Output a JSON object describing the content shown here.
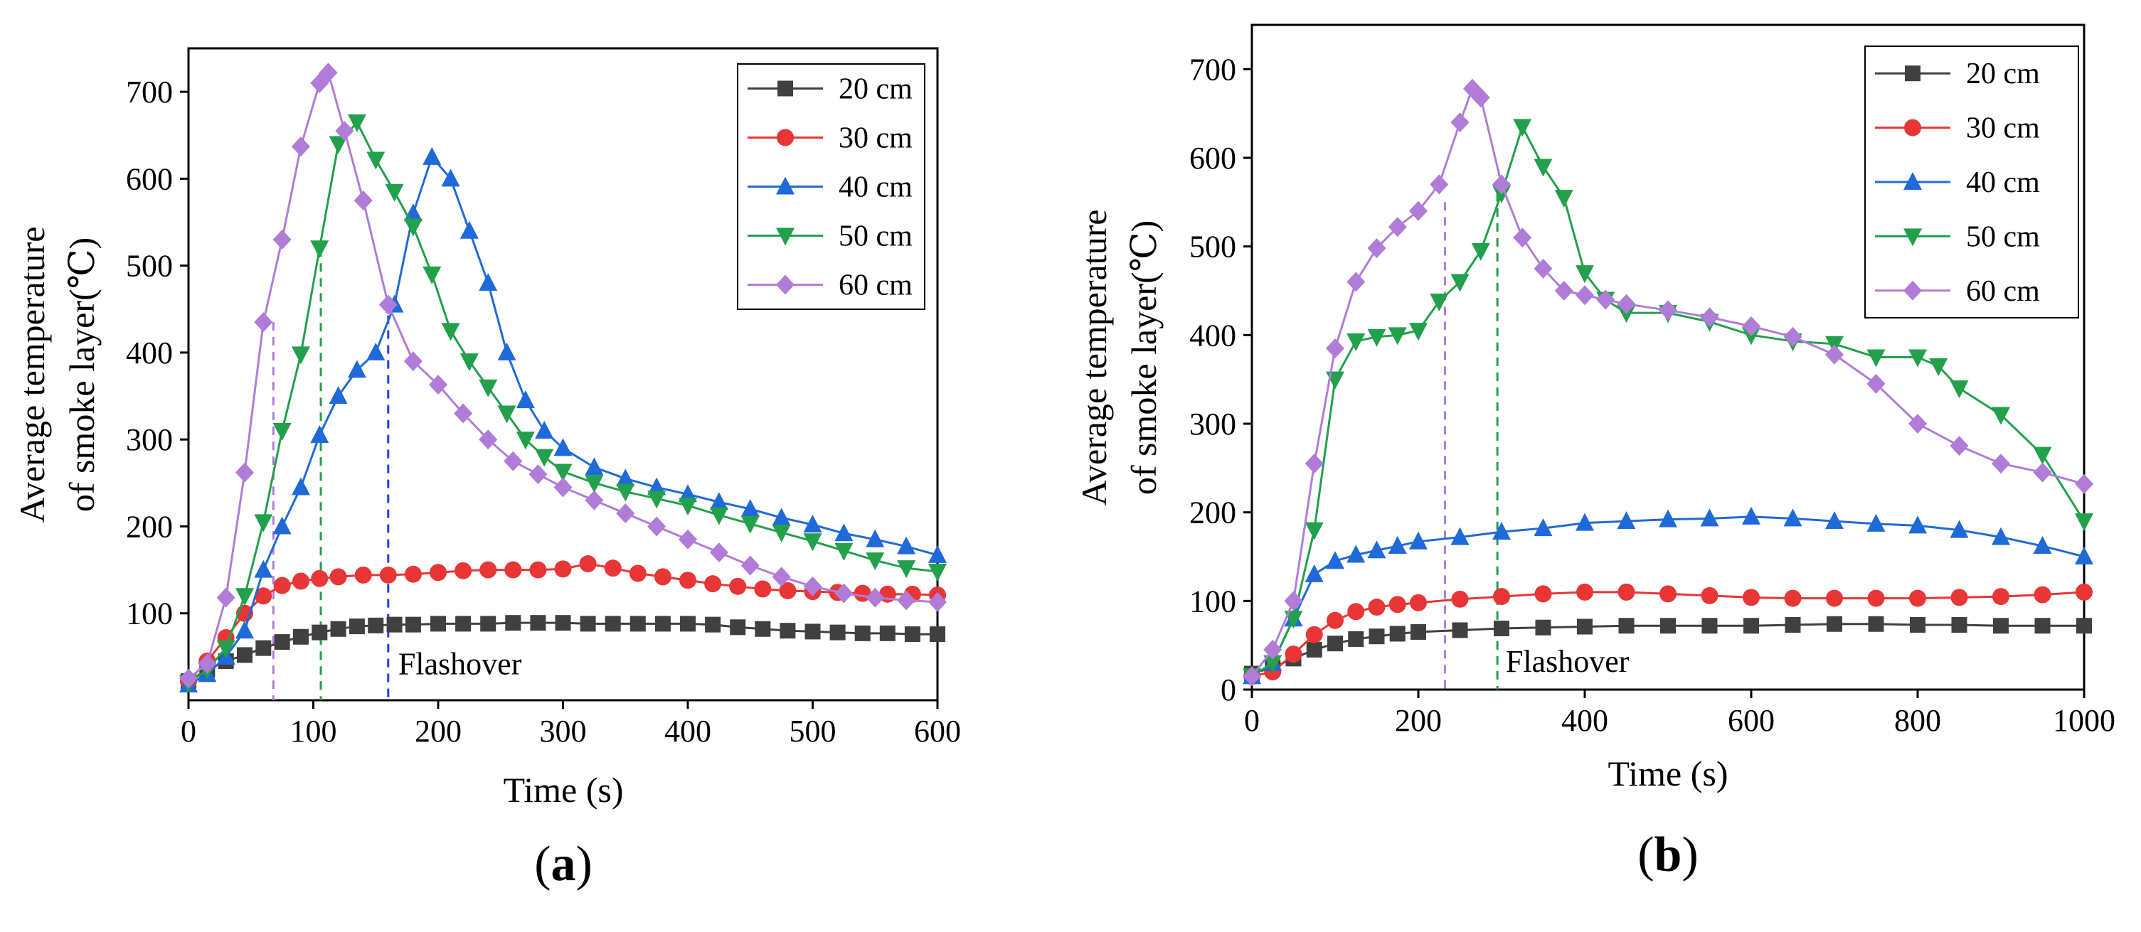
{
  "chart_data": [
    {
      "type": "line",
      "panel": "(a)",
      "panel_letter": "a",
      "xlabel": "Time (s)",
      "ylabel_line1": "Average temperature",
      "ylabel_line2": "of smoke layer(℃)",
      "xlim": [
        0,
        600
      ],
      "ylim": [
        0,
        750
      ],
      "xticks": [
        0,
        100,
        200,
        300,
        400,
        500,
        600
      ],
      "yticks": [
        100,
        200,
        300,
        400,
        500,
        600,
        700
      ],
      "legend_position": "top-right",
      "annotation": {
        "text": "Flashover",
        "x": 168,
        "y": 30
      },
      "flashover_lines": [
        {
          "x": 68,
          "y": 435,
          "color": "#b07cd8"
        },
        {
          "x": 106,
          "y": 520,
          "color": "#22a04b"
        },
        {
          "x": 160,
          "y": 460,
          "color": "#1f3bff"
        }
      ],
      "series": [
        {
          "name": "20 cm",
          "color": "#404040",
          "marker": "square",
          "x": [
            0,
            15,
            30,
            45,
            60,
            75,
            90,
            105,
            120,
            135,
            150,
            165,
            180,
            200,
            220,
            240,
            260,
            280,
            300,
            320,
            340,
            360,
            380,
            400,
            420,
            440,
            460,
            480,
            500,
            520,
            540,
            560,
            580,
            600
          ],
          "y": [
            22,
            35,
            45,
            52,
            60,
            67,
            73,
            78,
            82,
            85,
            86,
            87,
            87,
            88,
            88,
            88,
            89,
            89,
            89,
            88,
            88,
            88,
            88,
            88,
            87,
            84,
            82,
            80,
            79,
            78,
            77,
            77,
            76,
            76
          ]
        },
        {
          "name": "30 cm",
          "color": "#e83535",
          "marker": "circle",
          "x": [
            0,
            15,
            30,
            45,
            60,
            75,
            90,
            105,
            120,
            140,
            160,
            180,
            200,
            220,
            240,
            260,
            280,
            300,
            320,
            340,
            360,
            380,
            400,
            420,
            440,
            460,
            480,
            500,
            520,
            540,
            560,
            580,
            600
          ],
          "y": [
            22,
            45,
            72,
            100,
            120,
            132,
            137,
            140,
            142,
            144,
            144,
            145,
            147,
            149,
            150,
            150,
            150,
            151,
            157,
            152,
            146,
            142,
            138,
            134,
            131,
            128,
            126,
            125,
            124,
            123,
            122,
            122,
            121
          ]
        },
        {
          "name": "40 cm",
          "color": "#1f6ad8",
          "marker": "triangle-up",
          "x": [
            0,
            15,
            30,
            45,
            60,
            75,
            90,
            105,
            120,
            135,
            150,
            165,
            180,
            195,
            210,
            225,
            240,
            255,
            270,
            285,
            300,
            325,
            350,
            375,
            400,
            425,
            450,
            475,
            500,
            525,
            550,
            575,
            600
          ],
          "y": [
            18,
            30,
            50,
            80,
            150,
            200,
            245,
            305,
            350,
            380,
            400,
            455,
            560,
            625,
            600,
            540,
            480,
            400,
            345,
            310,
            290,
            268,
            255,
            245,
            237,
            228,
            220,
            210,
            202,
            192,
            185,
            177,
            167
          ]
        },
        {
          "name": "50 cm",
          "color": "#22a04b",
          "marker": "triangle-down",
          "x": [
            0,
            15,
            30,
            45,
            60,
            75,
            90,
            105,
            120,
            135,
            150,
            165,
            180,
            195,
            210,
            225,
            240,
            255,
            270,
            285,
            300,
            325,
            350,
            375,
            400,
            425,
            450,
            475,
            500,
            525,
            550,
            575,
            600
          ],
          "y": [
            20,
            35,
            60,
            120,
            205,
            310,
            398,
            520,
            640,
            665,
            622,
            585,
            545,
            490,
            425,
            390,
            360,
            330,
            300,
            280,
            263,
            250,
            240,
            232,
            224,
            213,
            203,
            193,
            183,
            172,
            161,
            152,
            148
          ]
        },
        {
          "name": "60 cm",
          "color": "#b07cd8",
          "marker": "diamond",
          "x": [
            0,
            15,
            30,
            45,
            60,
            75,
            90,
            105,
            112,
            125,
            140,
            160,
            180,
            200,
            220,
            240,
            260,
            280,
            300,
            325,
            350,
            375,
            400,
            425,
            450,
            475,
            500,
            525,
            550,
            575,
            600
          ],
          "y": [
            25,
            42,
            118,
            262,
            435,
            530,
            637,
            710,
            722,
            655,
            575,
            455,
            390,
            363,
            330,
            300,
            275,
            260,
            245,
            230,
            215,
            200,
            185,
            170,
            155,
            142,
            131,
            123,
            118,
            115,
            113
          ]
        }
      ]
    },
    {
      "type": "line",
      "panel": "(b)",
      "panel_letter": "b",
      "xlabel": "Time (s)",
      "ylabel_line1": "Average temperature",
      "ylabel_line2": "of smoke layer(℃)",
      "xlim": [
        0,
        1000
      ],
      "ylim": [
        0,
        750
      ],
      "xticks": [
        0,
        200,
        400,
        600,
        800,
        1000
      ],
      "yticks": [
        0,
        100,
        200,
        300,
        400,
        500,
        600,
        700
      ],
      "legend_position": "top-right",
      "annotation": {
        "text": "Flashover",
        "x": 305,
        "y": 20
      },
      "flashover_lines": [
        {
          "x": 232,
          "y": 550,
          "color": "#b07cd8"
        },
        {
          "x": 295,
          "y": 560,
          "color": "#22a04b"
        }
      ],
      "series": [
        {
          "name": "20 cm",
          "color": "#404040",
          "marker": "square",
          "x": [
            0,
            25,
            50,
            75,
            100,
            125,
            150,
            175,
            200,
            250,
            300,
            350,
            400,
            450,
            500,
            550,
            600,
            650,
            700,
            750,
            800,
            850,
            900,
            950,
            1000
          ],
          "y": [
            18,
            25,
            35,
            45,
            52,
            57,
            60,
            63,
            65,
            67,
            69,
            70,
            71,
            72,
            72,
            72,
            72,
            73,
            74,
            74,
            73,
            73,
            72,
            72,
            72
          ]
        },
        {
          "name": "30 cm",
          "color": "#e83535",
          "marker": "circle",
          "x": [
            0,
            25,
            50,
            75,
            100,
            125,
            150,
            175,
            200,
            250,
            300,
            350,
            400,
            450,
            500,
            550,
            600,
            650,
            700,
            750,
            800,
            850,
            900,
            950,
            1000
          ],
          "y": [
            15,
            20,
            40,
            62,
            78,
            88,
            93,
            96,
            98,
            102,
            105,
            108,
            110,
            110,
            108,
            106,
            104,
            103,
            103,
            103,
            103,
            104,
            105,
            107,
            110
          ]
        },
        {
          "name": "40 cm",
          "color": "#1f6ad8",
          "marker": "triangle-up",
          "x": [
            0,
            25,
            50,
            75,
            100,
            125,
            150,
            175,
            200,
            250,
            300,
            350,
            400,
            450,
            500,
            550,
            600,
            650,
            700,
            750,
            800,
            850,
            900,
            950,
            1000
          ],
          "y": [
            15,
            30,
            80,
            130,
            145,
            152,
            157,
            162,
            167,
            172,
            178,
            182,
            188,
            190,
            192,
            193,
            195,
            193,
            190,
            187,
            185,
            180,
            172,
            162,
            150
          ]
        },
        {
          "name": "50 cm",
          "color": "#22a04b",
          "marker": "triangle-down",
          "x": [
            0,
            25,
            50,
            75,
            100,
            125,
            150,
            175,
            200,
            225,
            250,
            275,
            300,
            325,
            350,
            375,
            400,
            425,
            450,
            500,
            550,
            600,
            650,
            700,
            750,
            800,
            825,
            850,
            900,
            950,
            1000
          ],
          "y": [
            15,
            30,
            80,
            180,
            350,
            393,
            398,
            400,
            405,
            438,
            460,
            495,
            560,
            635,
            590,
            555,
            470,
            440,
            425,
            425,
            415,
            400,
            393,
            390,
            375,
            375,
            365,
            340,
            310,
            265,
            190
          ]
        },
        {
          "name": "60 cm",
          "color": "#b07cd8",
          "marker": "diamond",
          "x": [
            0,
            25,
            50,
            75,
            100,
            125,
            150,
            175,
            200,
            225,
            250,
            265,
            275,
            300,
            325,
            350,
            375,
            400,
            425,
            450,
            500,
            550,
            600,
            650,
            700,
            750,
            800,
            850,
            900,
            950,
            1000
          ],
          "y": [
            15,
            45,
            100,
            255,
            385,
            460,
            498,
            522,
            540,
            570,
            640,
            678,
            668,
            570,
            510,
            475,
            450,
            445,
            440,
            435,
            428,
            420,
            410,
            398,
            378,
            345,
            300,
            275,
            255,
            245,
            232
          ]
        }
      ]
    }
  ]
}
